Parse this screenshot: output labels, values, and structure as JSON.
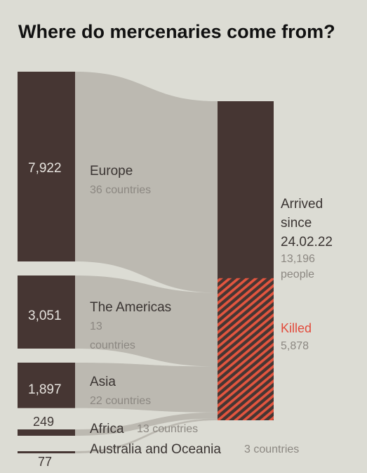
{
  "title": "Where do mercenaries come from?",
  "chart_data": {
    "type": "sankey",
    "title": "Where do mercenaries come from?",
    "sources": [
      {
        "name": "Europe",
        "value": 7922,
        "value_label": "7,922",
        "countries_label": "36 countries"
      },
      {
        "name": "The Americas",
        "value": 3051,
        "value_label": "3,051",
        "countries_label": "13 countries"
      },
      {
        "name": "Asia",
        "value": 1897,
        "value_label": "1,897",
        "countries_label": "22 countries"
      },
      {
        "name": "Africa",
        "value": 249,
        "value_label": "249",
        "countries_label": "13 countries"
      },
      {
        "name": "Australia and Oceania",
        "value": 77,
        "value_label": "77",
        "countries_label": "3 countries"
      }
    ],
    "target": {
      "label_lines": [
        "Arrived",
        "since",
        "24.02.22"
      ],
      "total": 13196,
      "people_lines": [
        "13,196",
        "people"
      ],
      "killed_label": "Killed",
      "killed": 5878,
      "killed_value_label": "5,878"
    },
    "colors": {
      "bar": "#463633",
      "flow": "#b9b5ae",
      "killed_hatch": "#e2553f",
      "killed_label": "#e24a3b",
      "background": "#dcdcd4"
    }
  }
}
